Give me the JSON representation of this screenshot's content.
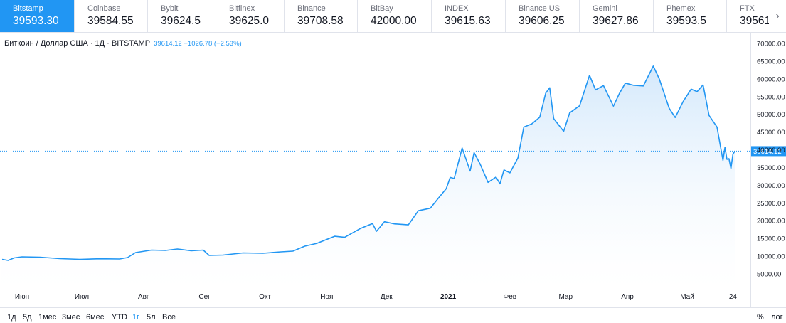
{
  "tabs": [
    {
      "name": "Bitstamp",
      "price": "39593.30",
      "active": true
    },
    {
      "name": "Coinbase",
      "price": "39584.55"
    },
    {
      "name": "Bybit",
      "price": "39624.5"
    },
    {
      "name": "Bitfinex",
      "price": "39625.0"
    },
    {
      "name": "Binance",
      "price": "39708.58"
    },
    {
      "name": "BitBay",
      "price": "42000.00"
    },
    {
      "name": "INDEX",
      "price": "39615.63"
    },
    {
      "name": "Binance US",
      "price": "39606.25"
    },
    {
      "name": "Gemini",
      "price": "39627.86"
    },
    {
      "name": "Phemex",
      "price": "39593.5"
    },
    {
      "name": "FTX",
      "price": "39561"
    }
  ],
  "legend": {
    "symbol": "Биткоин / Доллар США · 1Д · BITSTAMP",
    "values": "39614.12  −1026.78 (−2.53%)"
  },
  "last_price_label": "39614.12",
  "ranges": [
    {
      "label": "1д"
    },
    {
      "label": "5д"
    },
    {
      "label": "1мес"
    },
    {
      "label": "3мес"
    },
    {
      "label": "6мес"
    },
    {
      "label": "YTD"
    },
    {
      "label": "1г",
      "active": true
    },
    {
      "label": "5л"
    },
    {
      "label": "Все"
    }
  ],
  "options": {
    "percent": "%",
    "log": "лог"
  },
  "colors": {
    "line": "#2196f3",
    "active_tab": "#2196f3",
    "fill_top": "#cfe6fb",
    "fill_bottom": "#ffffff"
  },
  "chart_data": {
    "type": "area",
    "ylim": [
      5000,
      70000
    ],
    "y_ticks": [
      5000,
      10000,
      15000,
      20000,
      25000,
      30000,
      35000,
      40000,
      45000,
      50000,
      55000,
      60000,
      65000,
      70000
    ],
    "y_tick_labels": [
      "5000.00",
      "10000.00",
      "15000.00",
      "20000.00",
      "25000.00",
      "30000.00",
      "35000.00",
      "40000.00",
      "45000.00",
      "50000.00",
      "55000.00",
      "60000.00",
      "65000.00",
      "70000.00"
    ],
    "x_ticks": [
      {
        "label": "Июн",
        "date": "2020-06-01"
      },
      {
        "label": "Июл",
        "date": "2020-07-01"
      },
      {
        "label": "Авг",
        "date": "2020-08-01"
      },
      {
        "label": "Сен",
        "date": "2020-09-01"
      },
      {
        "label": "Окт",
        "date": "2020-10-01"
      },
      {
        "label": "Ноя",
        "date": "2020-11-01"
      },
      {
        "label": "Дек",
        "date": "2020-12-01"
      },
      {
        "label": "2021",
        "date": "2021-01-01",
        "bold": true
      },
      {
        "label": "Фев",
        "date": "2021-02-01"
      },
      {
        "label": "Мар",
        "date": "2021-03-01"
      },
      {
        "label": "Апр",
        "date": "2021-04-01"
      },
      {
        "label": "Май",
        "date": "2021-05-01"
      },
      {
        "label": "24",
        "date": "2021-05-24"
      }
    ],
    "x_range": [
      "2020-05-22",
      "2021-06-01"
    ],
    "series": [
      {
        "values": [
          [
            "2020-05-22",
            9100
          ],
          [
            "2020-05-25",
            8800
          ],
          [
            "2020-05-28",
            9500
          ],
          [
            "2020-06-01",
            9800
          ],
          [
            "2020-06-10",
            9700
          ],
          [
            "2020-06-20",
            9300
          ],
          [
            "2020-06-30",
            9100
          ],
          [
            "2020-07-10",
            9250
          ],
          [
            "2020-07-20",
            9200
          ],
          [
            "2020-07-24",
            9600
          ],
          [
            "2020-07-28",
            11000
          ],
          [
            "2020-08-05",
            11700
          ],
          [
            "2020-08-12",
            11600
          ],
          [
            "2020-08-18",
            12000
          ],
          [
            "2020-08-25",
            11500
          ],
          [
            "2020-08-31",
            11700
          ],
          [
            "2020-09-03",
            10200
          ],
          [
            "2020-09-10",
            10300
          ],
          [
            "2020-09-20",
            10900
          ],
          [
            "2020-09-30",
            10800
          ],
          [
            "2020-10-09",
            11200
          ],
          [
            "2020-10-15",
            11400
          ],
          [
            "2020-10-21",
            12800
          ],
          [
            "2020-10-27",
            13600
          ],
          [
            "2020-11-05",
            15600
          ],
          [
            "2020-11-10",
            15300
          ],
          [
            "2020-11-18",
            17800
          ],
          [
            "2020-11-24",
            19200
          ],
          [
            "2020-11-26",
            17000
          ],
          [
            "2020-11-30",
            19700
          ],
          [
            "2020-12-05",
            19100
          ],
          [
            "2020-12-12",
            18800
          ],
          [
            "2020-12-17",
            22800
          ],
          [
            "2020-12-23",
            23500
          ],
          [
            "2020-12-27",
            26300
          ],
          [
            "2020-12-31",
            29000
          ],
          [
            "2021-01-02",
            32200
          ],
          [
            "2021-01-04",
            31900
          ],
          [
            "2021-01-08",
            40500
          ],
          [
            "2021-01-12",
            34000
          ],
          [
            "2021-01-14",
            39200
          ],
          [
            "2021-01-17",
            36000
          ],
          [
            "2021-01-21",
            30800
          ],
          [
            "2021-01-25",
            32300
          ],
          [
            "2021-01-27",
            30400
          ],
          [
            "2021-01-29",
            34300
          ],
          [
            "2021-02-01",
            33500
          ],
          [
            "2021-02-05",
            37700
          ],
          [
            "2021-02-08",
            46400
          ],
          [
            "2021-02-12",
            47300
          ],
          [
            "2021-02-16",
            49200
          ],
          [
            "2021-02-19",
            56000
          ],
          [
            "2021-02-21",
            57500
          ],
          [
            "2021-02-23",
            48800
          ],
          [
            "2021-02-28",
            45200
          ],
          [
            "2021-03-03",
            50400
          ],
          [
            "2021-03-08",
            52400
          ],
          [
            "2021-03-13",
            61000
          ],
          [
            "2021-03-16",
            56900
          ],
          [
            "2021-03-20",
            58100
          ],
          [
            "2021-03-25",
            52300
          ],
          [
            "2021-03-28",
            55900
          ],
          [
            "2021-03-31",
            58800
          ],
          [
            "2021-04-04",
            58200
          ],
          [
            "2021-04-09",
            58000
          ],
          [
            "2021-04-14",
            63600
          ],
          [
            "2021-04-17",
            60000
          ],
          [
            "2021-04-22",
            51700
          ],
          [
            "2021-04-25",
            49100
          ],
          [
            "2021-04-29",
            53600
          ],
          [
            "2021-05-03",
            57100
          ],
          [
            "2021-05-06",
            56400
          ],
          [
            "2021-05-09",
            58300
          ],
          [
            "2021-05-12",
            49700
          ],
          [
            "2021-05-16",
            46400
          ],
          [
            "2021-05-19",
            37000
          ],
          [
            "2021-05-20",
            40700
          ],
          [
            "2021-05-21",
            37300
          ],
          [
            "2021-05-22",
            37500
          ],
          [
            "2021-05-23",
            34700
          ],
          [
            "2021-05-24",
            38800
          ],
          [
            "2021-05-25",
            39614
          ]
        ]
      }
    ],
    "last_value": 39614.12
  }
}
